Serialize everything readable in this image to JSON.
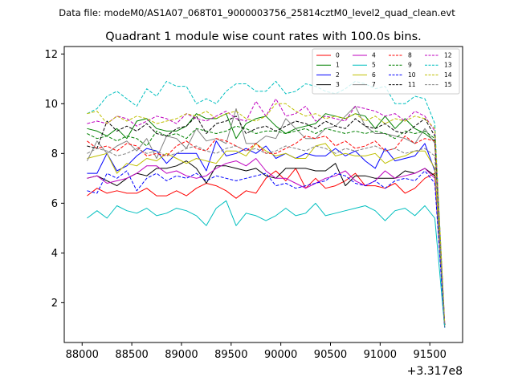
{
  "header": {
    "suptitle": "Data file: modeM0/AS1A07_068T01_9000003756_25814cztM0_level2_quad_clean.evt",
    "title": "Quadrant 1 module wise count rates with 100.0s bins.",
    "offset_label": "+3.317e8"
  },
  "chart_data": {
    "type": "line",
    "title": "Quadrant 1 module wise count rates with 100.0s bins.",
    "xlabel": "",
    "ylabel": "",
    "x_offset": 331700000,
    "xlim": [
      87820,
      91830
    ],
    "ylim": [
      0.4,
      12.3
    ],
    "xticks": [
      88000,
      88500,
      89000,
      89500,
      90000,
      90500,
      91000,
      91500
    ],
    "xtick_labels": [
      "88000",
      "88500",
      "89000",
      "89500",
      "90000",
      "90500",
      "91000",
      "91500"
    ],
    "yticks": [
      2,
      4,
      6,
      8,
      10,
      12
    ],
    "ytick_labels": [
      "2",
      "4",
      "6",
      "8",
      "10",
      "12"
    ],
    "legend_placement": "top-right",
    "legend_columns": 4,
    "x": [
      88050,
      88150,
      88250,
      88350,
      88450,
      88550,
      88650,
      88750,
      88850,
      88950,
      89050,
      89150,
      89250,
      89350,
      89450,
      89550,
      89650,
      89750,
      89850,
      89950,
      90050,
      90150,
      90250,
      90350,
      90450,
      90550,
      90650,
      90750,
      90850,
      90950,
      91050,
      91150,
      91250,
      91350,
      91450,
      91550,
      91650
    ],
    "series": [
      {
        "name": "0",
        "color": "#ff0000",
        "dash": "solid",
        "values": [
          6.3,
          6.6,
          6.4,
          6.5,
          6.4,
          6.4,
          6.6,
          6.3,
          6.3,
          6.5,
          6.3,
          6.6,
          6.8,
          6.7,
          6.5,
          6.2,
          6.5,
          6.4,
          7.0,
          7.3,
          6.9,
          7.4,
          6.6,
          7.0,
          6.6,
          6.7,
          6.9,
          7.2,
          6.7,
          6.7,
          6.6,
          6.8,
          6.4,
          6.6,
          7.0,
          7.2,
          1.1
        ]
      },
      {
        "name": "1",
        "color": "#008000",
        "dash": "solid",
        "values": [
          9.0,
          8.9,
          8.7,
          9.0,
          8.6,
          9.3,
          9.4,
          9.0,
          8.9,
          8.9,
          9.1,
          9.6,
          9.4,
          9.4,
          9.6,
          8.6,
          9.2,
          9.4,
          9.5,
          9.1,
          8.8,
          9.0,
          9.1,
          9.2,
          9.6,
          9.5,
          9.4,
          9.6,
          9.5,
          9.0,
          9.5,
          9.0,
          9.4,
          9.0,
          8.8,
          8.5,
          1.1
        ]
      },
      {
        "name": "2",
        "color": "#0000ff",
        "dash": "solid",
        "values": [
          7.2,
          7.2,
          8.0,
          7.3,
          7.5,
          7.9,
          8.2,
          8.1,
          7.6,
          8.0,
          8.0,
          8.0,
          7.3,
          8.5,
          7.9,
          8.0,
          8.2,
          8.0,
          8.3,
          7.8,
          8.0,
          7.8,
          8.0,
          7.9,
          7.9,
          8.2,
          7.9,
          8.1,
          7.7,
          7.4,
          8.2,
          7.7,
          7.8,
          7.9,
          8.4,
          7.3,
          1.0
        ]
      },
      {
        "name": "3",
        "color": "#000000",
        "dash": "solid",
        "values": [
          7.0,
          7.1,
          6.9,
          6.7,
          7.0,
          7.2,
          7.1,
          7.4,
          7.4,
          7.5,
          7.7,
          7.4,
          6.8,
          7.5,
          7.5,
          7.4,
          7.3,
          7.4,
          7.1,
          7.0,
          7.4,
          7.4,
          7.4,
          7.3,
          7.3,
          7.6,
          6.7,
          7.1,
          7.1,
          7.0,
          7.0,
          7.0,
          7.3,
          7.2,
          7.4,
          7.1,
          1.1
        ]
      },
      {
        "name": "4",
        "color": "#bf00bf",
        "dash": "solid",
        "values": [
          7.0,
          7.1,
          6.8,
          6.9,
          7.0,
          7.2,
          7.5,
          7.5,
          7.2,
          7.3,
          7.1,
          7.0,
          7.1,
          7.4,
          7.6,
          7.7,
          7.5,
          7.8,
          7.3,
          7.0,
          7.0,
          6.8,
          6.6,
          6.8,
          7.0,
          7.1,
          7.3,
          6.9,
          6.7,
          6.9,
          7.3,
          7.0,
          7.1,
          7.2,
          7.4,
          7.0,
          1.2
        ]
      },
      {
        "name": "5",
        "color": "#00bfbf",
        "dash": "solid",
        "values": [
          5.4,
          5.7,
          5.4,
          5.9,
          5.7,
          5.6,
          5.8,
          5.5,
          5.6,
          5.8,
          5.7,
          5.5,
          5.1,
          5.8,
          6.1,
          5.1,
          5.6,
          5.5,
          5.3,
          5.5,
          5.8,
          5.5,
          5.6,
          6.0,
          5.5,
          5.6,
          5.7,
          5.8,
          5.9,
          5.7,
          5.3,
          5.7,
          5.8,
          5.5,
          5.9,
          5.4,
          1.0
        ]
      },
      {
        "name": "6",
        "color": "#bfbf00",
        "dash": "solid",
        "values": [
          7.8,
          7.9,
          8.0,
          7.2,
          7.6,
          7.5,
          7.8,
          7.7,
          8.0,
          7.8,
          7.6,
          7.8,
          7.7,
          7.6,
          8.1,
          8.1,
          7.9,
          8.4,
          8.1,
          7.9,
          8.0,
          7.8,
          7.8,
          8.3,
          8.4,
          7.9,
          8.0,
          7.9,
          7.9,
          8.0,
          7.6,
          7.8,
          7.9,
          8.1,
          8.1,
          7.4,
          1.0
        ]
      },
      {
        "name": "7",
        "color": "#808080",
        "dash": "solid",
        "values": [
          7.7,
          8.5,
          8.0,
          8.3,
          8.5,
          8.1,
          8.6,
          7.8,
          8.7,
          8.6,
          8.2,
          9.0,
          8.5,
          8.6,
          8.4,
          9.8,
          8.4,
          8.4,
          8.7,
          8.6,
          9.4,
          9.0,
          8.6,
          8.6,
          9.0,
          9.1,
          9.5,
          9.9,
          9.1,
          8.8,
          8.8,
          8.7,
          8.6,
          8.4,
          9.0,
          8.4,
          1.0
        ]
      },
      {
        "name": "8",
        "color": "#ff0000",
        "dash": "dashed",
        "values": [
          8.5,
          8.2,
          8.3,
          8.1,
          8.4,
          8.3,
          7.9,
          8.0,
          7.9,
          8.3,
          8.5,
          8.2,
          8.1,
          8.6,
          8.5,
          8.3,
          8.1,
          8.4,
          8.0,
          8.0,
          8.2,
          8.4,
          8.7,
          8.6,
          8.7,
          8.3,
          8.5,
          8.2,
          8.3,
          8.5,
          8.1,
          8.2,
          8.7,
          8.4,
          8.6,
          8.5,
          1.1
        ]
      },
      {
        "name": "9",
        "color": "#008000",
        "dash": "dashed",
        "values": [
          8.8,
          8.6,
          8.7,
          8.5,
          8.7,
          8.6,
          8.3,
          8.9,
          8.7,
          8.8,
          8.6,
          9.0,
          8.9,
          8.8,
          8.9,
          9.1,
          9.0,
          8.8,
          8.9,
          8.9,
          8.8,
          8.9,
          9.0,
          8.8,
          9.0,
          8.9,
          8.8,
          8.9,
          8.8,
          8.9,
          8.8,
          8.6,
          8.9,
          8.8,
          8.9,
          8.6,
          1.1
        ]
      },
      {
        "name": "10",
        "color": "#0000ff",
        "dash": "dashed",
        "values": [
          6.5,
          6.4,
          7.2,
          7.0,
          7.3,
          6.5,
          7.0,
          7.2,
          6.9,
          7.1,
          7.0,
          7.2,
          6.9,
          7.1,
          7.0,
          6.9,
          7.0,
          7.1,
          7.2,
          6.7,
          6.8,
          6.6,
          6.7,
          6.8,
          6.9,
          7.2,
          7.1,
          6.8,
          6.7,
          6.9,
          6.6,
          6.9,
          7.0,
          6.9,
          7.3,
          6.8,
          1.0
        ]
      },
      {
        "name": "11",
        "color": "#000000",
        "dash": "dashed",
        "values": [
          8.3,
          8.2,
          9.3,
          8.9,
          9.1,
          8.9,
          9.2,
          8.8,
          8.7,
          9.0,
          9.1,
          9.5,
          8.8,
          9.2,
          9.3,
          9.5,
          8.8,
          9.0,
          9.1,
          8.9,
          9.1,
          9.3,
          9.2,
          9.0,
          9.3,
          9.1,
          9.0,
          9.4,
          9.1,
          9.0,
          9.2,
          8.9,
          8.8,
          9.1,
          9.4,
          8.7,
          1.1
        ]
      },
      {
        "name": "12",
        "color": "#bf00bf",
        "dash": "dashed",
        "values": [
          9.2,
          9.3,
          9.2,
          9.5,
          9.4,
          9.1,
          9.3,
          9.5,
          9.4,
          9.2,
          9.6,
          9.4,
          9.3,
          9.5,
          9.7,
          9.4,
          9.3,
          10.1,
          9.5,
          10.2,
          9.5,
          9.6,
          9.9,
          9.3,
          9.5,
          9.4,
          9.3,
          9.9,
          9.8,
          9.7,
          9.5,
          9.6,
          9.3,
          9.7,
          9.5,
          8.9,
          1.2
        ]
      },
      {
        "name": "13",
        "color": "#00bfbf",
        "dash": "dashed",
        "values": [
          9.6,
          9.8,
          10.3,
          10.5,
          10.2,
          9.9,
          10.6,
          10.3,
          10.9,
          10.7,
          10.7,
          10.0,
          10.2,
          10.0,
          10.5,
          10.8,
          10.8,
          10.5,
          10.5,
          10.9,
          10.4,
          10.5,
          10.8,
          10.7,
          10.5,
          10.4,
          10.6,
          10.9,
          10.8,
          10.6,
          10.7,
          10.0,
          10.0,
          10.3,
          10.2,
          9.2,
          1.0
        ]
      },
      {
        "name": "14",
        "color": "#bfbf00",
        "dash": "dashed",
        "values": [
          9.6,
          9.7,
          9.2,
          9.5,
          9.3,
          9.5,
          9.4,
          9.2,
          9.3,
          9.4,
          9.6,
          9.5,
          9.7,
          9.4,
          9.6,
          9.7,
          9.4,
          9.3,
          9.5,
          10.0,
          10.0,
          9.7,
          9.5,
          9.6,
          9.4,
          9.5,
          9.4,
          9.6,
          9.3,
          9.5,
          9.2,
          9.4,
          9.3,
          9.5,
          9.4,
          9.0,
          1.2
        ]
      },
      {
        "name": "15",
        "color": "#808080",
        "dash": "dashed",
        "values": [
          8.0,
          8.2,
          8.1,
          7.9,
          8.0,
          8.2,
          8.0,
          8.1,
          7.9,
          8.0,
          8.2,
          8.3,
          8.1,
          8.0,
          8.2,
          8.3,
          8.1,
          8.2,
          8.0,
          8.1,
          8.3,
          8.2,
          8.1,
          8.3,
          8.2,
          8.0,
          8.2,
          8.1,
          8.2,
          8.3,
          8.1,
          8.2,
          8.0,
          8.1,
          8.2,
          7.9,
          1.1
        ]
      }
    ]
  }
}
